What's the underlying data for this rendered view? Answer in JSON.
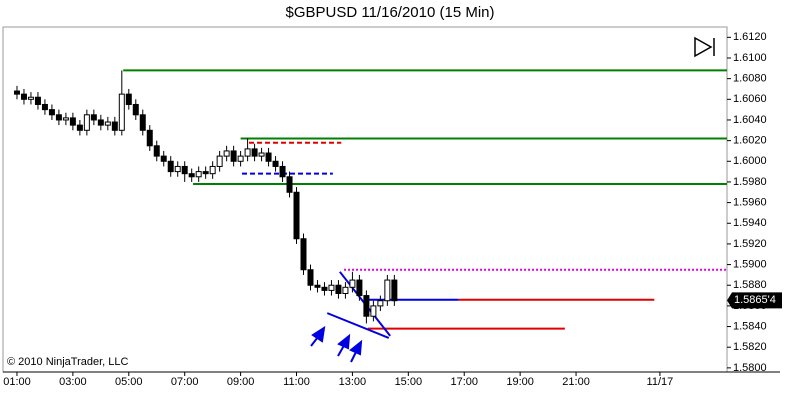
{
  "chart_data": {
    "type": "candlestick",
    "title": "$GBPUSD  11/16/2010 (15 Min)",
    "copyright": "© 2010 NinjaTrader, LLC",
    "x": [
      1,
      1.25,
      1.5,
      1.75,
      2,
      2.25,
      2.5,
      2.75,
      3,
      3.25,
      3.5,
      3.75,
      4,
      4.25,
      4.5,
      4.75,
      5,
      5.25,
      5.5,
      5.75,
      6,
      6.25,
      6.5,
      6.75,
      7,
      7.25,
      7.5,
      7.75,
      8,
      8.25,
      8.5,
      8.75,
      9,
      9.25,
      9.5,
      9.75,
      10,
      10.25,
      10.5,
      10.75,
      11,
      11.25,
      11.5,
      11.75,
      12,
      12.25,
      12.5,
      12.75,
      13,
      13.25,
      13.5,
      13.75,
      14,
      14.25,
      14.5
    ],
    "open": [
      1.6068,
      1.6065,
      1.606,
      1.6062,
      1.6055,
      1.605,
      1.6045,
      1.604,
      1.6042,
      1.6035,
      1.603,
      1.6045,
      1.604,
      1.6035,
      1.6038,
      1.603,
      1.6065,
      1.6055,
      1.6045,
      1.603,
      1.6015,
      1.6005,
      1.6,
      1.599,
      1.5995,
      1.5988,
      1.5985,
      1.599,
      1.5988,
      1.5995,
      1.6005,
      1.601,
      1.6,
      1.6005,
      1.6012,
      1.6005,
      1.6008,
      1.6,
      1.5995,
      1.5985,
      1.597,
      1.5925,
      1.5895,
      1.588,
      1.5878,
      1.5875,
      1.588,
      1.5872,
      1.5878,
      1.5885,
      1.587,
      1.585,
      1.586,
      1.5865,
      1.5885
    ],
    "high": [
      1.6073,
      1.607,
      1.6067,
      1.6067,
      1.606,
      1.6055,
      1.605,
      1.6047,
      1.6047,
      1.604,
      1.605,
      1.605,
      1.6045,
      1.6043,
      1.6043,
      1.6088,
      1.607,
      1.606,
      1.605,
      1.6035,
      1.602,
      1.601,
      1.6005,
      1.6,
      1.6,
      1.5993,
      1.5995,
      1.5995,
      1.6,
      1.601,
      1.6015,
      1.6015,
      1.601,
      1.6022,
      1.6017,
      1.6013,
      1.6013,
      1.6005,
      1.6,
      1.599,
      1.5975,
      1.593,
      1.59,
      1.5885,
      1.5883,
      1.5885,
      1.5885,
      1.5883,
      1.5893,
      1.589,
      1.5875,
      1.5865,
      1.587,
      1.589,
      1.589
    ],
    "low": [
      1.606,
      1.6055,
      1.6055,
      1.605,
      1.6045,
      1.604,
      1.6035,
      1.6035,
      1.603,
      1.6025,
      1.6025,
      1.6035,
      1.603,
      1.603,
      1.6025,
      1.6025,
      1.605,
      1.604,
      1.6025,
      1.601,
      1.6,
      1.5995,
      1.5985,
      1.5985,
      1.598,
      1.598,
      1.598,
      1.5983,
      1.5983,
      1.599,
      1.6,
      1.5995,
      1.5995,
      1.6,
      1.6,
      1.6,
      1.5995,
      1.599,
      1.598,
      1.5965,
      1.592,
      1.589,
      1.5875,
      1.5873,
      1.587,
      1.587,
      1.5867,
      1.5867,
      1.5873,
      1.5865,
      1.5843,
      1.5845,
      1.5855,
      1.586,
      1.586
    ],
    "close": [
      1.6065,
      1.606,
      1.6062,
      1.6055,
      1.605,
      1.6045,
      1.604,
      1.6042,
      1.6035,
      1.603,
      1.6045,
      1.604,
      1.6035,
      1.6038,
      1.603,
      1.6065,
      1.6055,
      1.6045,
      1.603,
      1.6015,
      1.6005,
      1.6,
      1.599,
      1.5995,
      1.5988,
      1.5985,
      1.599,
      1.5988,
      1.5995,
      1.6005,
      1.601,
      1.6,
      1.6005,
      1.6012,
      1.6005,
      1.6008,
      1.6,
      1.5995,
      1.5985,
      1.597,
      1.5925,
      1.5895,
      1.588,
      1.5878,
      1.5875,
      1.588,
      1.5872,
      1.5878,
      1.5885,
      1.587,
      1.585,
      1.586,
      1.5865,
      1.5885,
      1.5865
    ],
    "up_color": "#ffffff",
    "down_color": "#000000",
    "xlim": [
      0.5,
      26.4
    ],
    "ylim": [
      1.5796,
      1.613
    ],
    "xticks": [
      {
        "value": 1,
        "label": "01:00"
      },
      {
        "value": 3,
        "label": "03:00"
      },
      {
        "value": 5,
        "label": "05:00"
      },
      {
        "value": 7,
        "label": "07:00"
      },
      {
        "value": 9,
        "label": "09:00"
      },
      {
        "value": 11,
        "label": "11:00"
      },
      {
        "value": 13,
        "label": "13:00"
      },
      {
        "value": 15,
        "label": "15:00"
      },
      {
        "value": 17,
        "label": "17:00"
      },
      {
        "value": 19,
        "label": "19:00"
      },
      {
        "value": 21,
        "label": "21:00"
      },
      {
        "value": 24,
        "label": "11/17"
      }
    ],
    "yticks": [
      {
        "value": 1.58,
        "label": "1.5800"
      },
      {
        "value": 1.582,
        "label": "1.5820"
      },
      {
        "value": 1.584,
        "label": "1.5840"
      },
      {
        "value": 1.586,
        "label": "1.5860"
      },
      {
        "value": 1.588,
        "label": "1.5880"
      },
      {
        "value": 1.59,
        "label": "1.5900"
      },
      {
        "value": 1.592,
        "label": "1.5920"
      },
      {
        "value": 1.594,
        "label": "1.5940"
      },
      {
        "value": 1.596,
        "label": "1.5960"
      },
      {
        "value": 1.598,
        "label": "1.5980"
      },
      {
        "value": 1.6,
        "label": "1.6000"
      },
      {
        "value": 1.602,
        "label": "1.6020"
      },
      {
        "value": 1.604,
        "label": "1.6040"
      },
      {
        "value": 1.606,
        "label": "1.6060"
      },
      {
        "value": 1.608,
        "label": "1.6080"
      },
      {
        "value": 1.61,
        "label": "1.6100"
      },
      {
        "value": 1.612,
        "label": "1.6120"
      }
    ],
    "last_price": {
      "value": 1.58654,
      "label": "1.5865'4"
    },
    "levels": [
      {
        "y": 1.6088,
        "x": [
          4.8,
          26.4
        ],
        "color": "#008000",
        "dash": false
      },
      {
        "y": 1.6022,
        "x": [
          9,
          26.4
        ],
        "color": "#008000",
        "dash": false
      },
      {
        "y": 1.5978,
        "x": [
          7.3,
          26.4
        ],
        "color": "#008000",
        "dash": false
      },
      {
        "y": 1.6018,
        "x": [
          9.3,
          12.6
        ],
        "color": "#e00000",
        "dash": true
      },
      {
        "y": 1.5988,
        "x": [
          9.05,
          12.3
        ],
        "color": "#0000e0",
        "dash": true
      },
      {
        "y": 1.5895,
        "x": [
          12.7,
          26.4
        ],
        "color": "#e000e0",
        "dash": true
      },
      {
        "y": 1.5866,
        "x": [
          13.4,
          16.8
        ],
        "color": "#0000e0",
        "dash": false
      },
      {
        "y": 1.5866,
        "x": [
          16.8,
          23.8
        ],
        "color": "#e00000",
        "dash": false
      },
      {
        "y": 1.5838,
        "x": [
          13.55,
          20.6
        ],
        "color": "#e00000",
        "dash": false
      }
    ],
    "trendlines": [
      {
        "x": [
          12.1,
          14.3
        ],
        "y": [
          1.5853,
          1.5829
        ],
        "color": "#0000e0"
      },
      {
        "x": [
          12.55,
          14.35
        ],
        "y": [
          1.5893,
          1.5831
        ],
        "color": "#0000e0"
      }
    ]
  }
}
